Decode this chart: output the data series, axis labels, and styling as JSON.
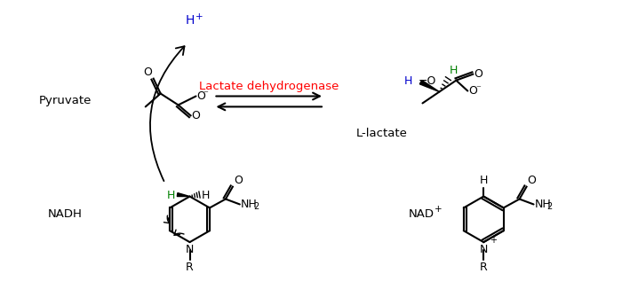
{
  "background_color": "#ffffff",
  "enzyme_color": "#ff0000",
  "blue_color": "#0000cc",
  "green_color": "#008000",
  "black_color": "#000000",
  "pyruvate_label": "Pyruvate",
  "llactate_label": "L-lactate",
  "nadh_label": "NADH",
  "nadplus_label": "NAD",
  "enzyme_label": "Lactate dehydrogenase"
}
